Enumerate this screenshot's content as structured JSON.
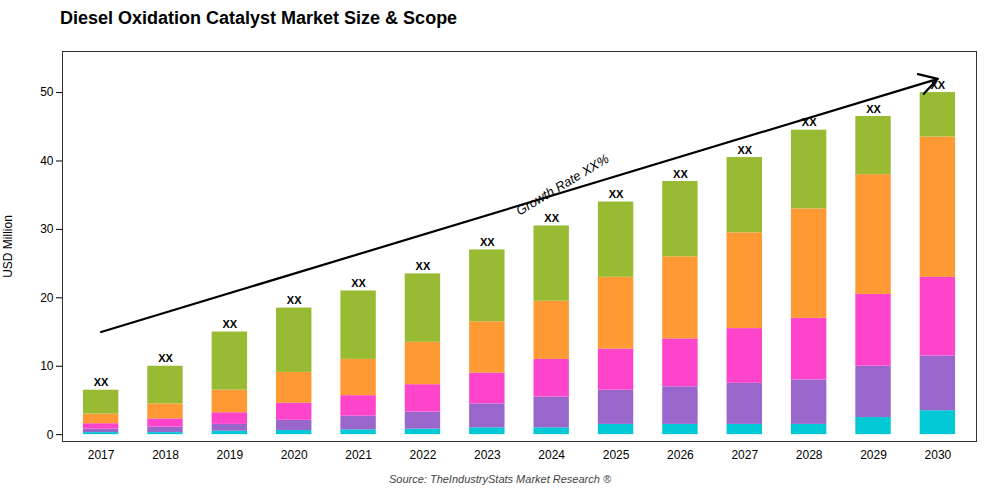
{
  "chart_data": {
    "type": "bar",
    "stacked": true,
    "title": "Diesel Oxidation Catalyst Market Size & Scope",
    "ylabel": "USD Million",
    "source": "Source: TheIndustryStats Market Research ®",
    "categories": [
      "2017",
      "2018",
      "2019",
      "2020",
      "2021",
      "2022",
      "2023",
      "2024",
      "2025",
      "2026",
      "2027",
      "2028",
      "2029",
      "2030"
    ],
    "series": [
      {
        "color": "#00c8d4",
        "values": [
          0.3,
          0.3,
          0.5,
          0.6,
          0.7,
          0.8,
          1.0,
          1.0,
          1.5,
          1.5,
          1.5,
          1.5,
          2.5,
          3.5
        ]
      },
      {
        "color": "#9966cc",
        "values": [
          0.5,
          0.8,
          1.0,
          1.5,
          2.0,
          2.5,
          3.5,
          4.5,
          5.0,
          5.5,
          6.0,
          6.5,
          7.5,
          8.0
        ]
      },
      {
        "color": "#ff44cc",
        "values": [
          0.8,
          1.2,
          1.7,
          2.5,
          3.0,
          4.0,
          4.5,
          5.5,
          6.0,
          7.0,
          8.0,
          9.0,
          10.5,
          11.5
        ]
      },
      {
        "color": "#ff9933",
        "values": [
          1.4,
          2.2,
          3.3,
          4.5,
          5.3,
          6.2,
          7.5,
          8.5,
          10.5,
          12.0,
          14.0,
          16.0,
          17.5,
          20.5
        ]
      },
      {
        "color": "#99bb33",
        "values": [
          3.5,
          5.5,
          8.5,
          9.4,
          10.0,
          10.0,
          10.5,
          11.0,
          11.0,
          11.0,
          11.0,
          11.5,
          8.5,
          6.5
        ]
      }
    ],
    "bar_label": "XX",
    "annotations": [
      {
        "type": "arrow",
        "x": 0,
        "y": 15,
        "x2": 13,
        "y2": 52
      },
      {
        "type": "text",
        "text": "Growth Rate XX%",
        "x": 6.5,
        "y": 32
      }
    ],
    "ylim": [
      -1,
      56
    ],
    "yticks": [
      0,
      10,
      20,
      30,
      40,
      50
    ],
    "grid": false
  }
}
